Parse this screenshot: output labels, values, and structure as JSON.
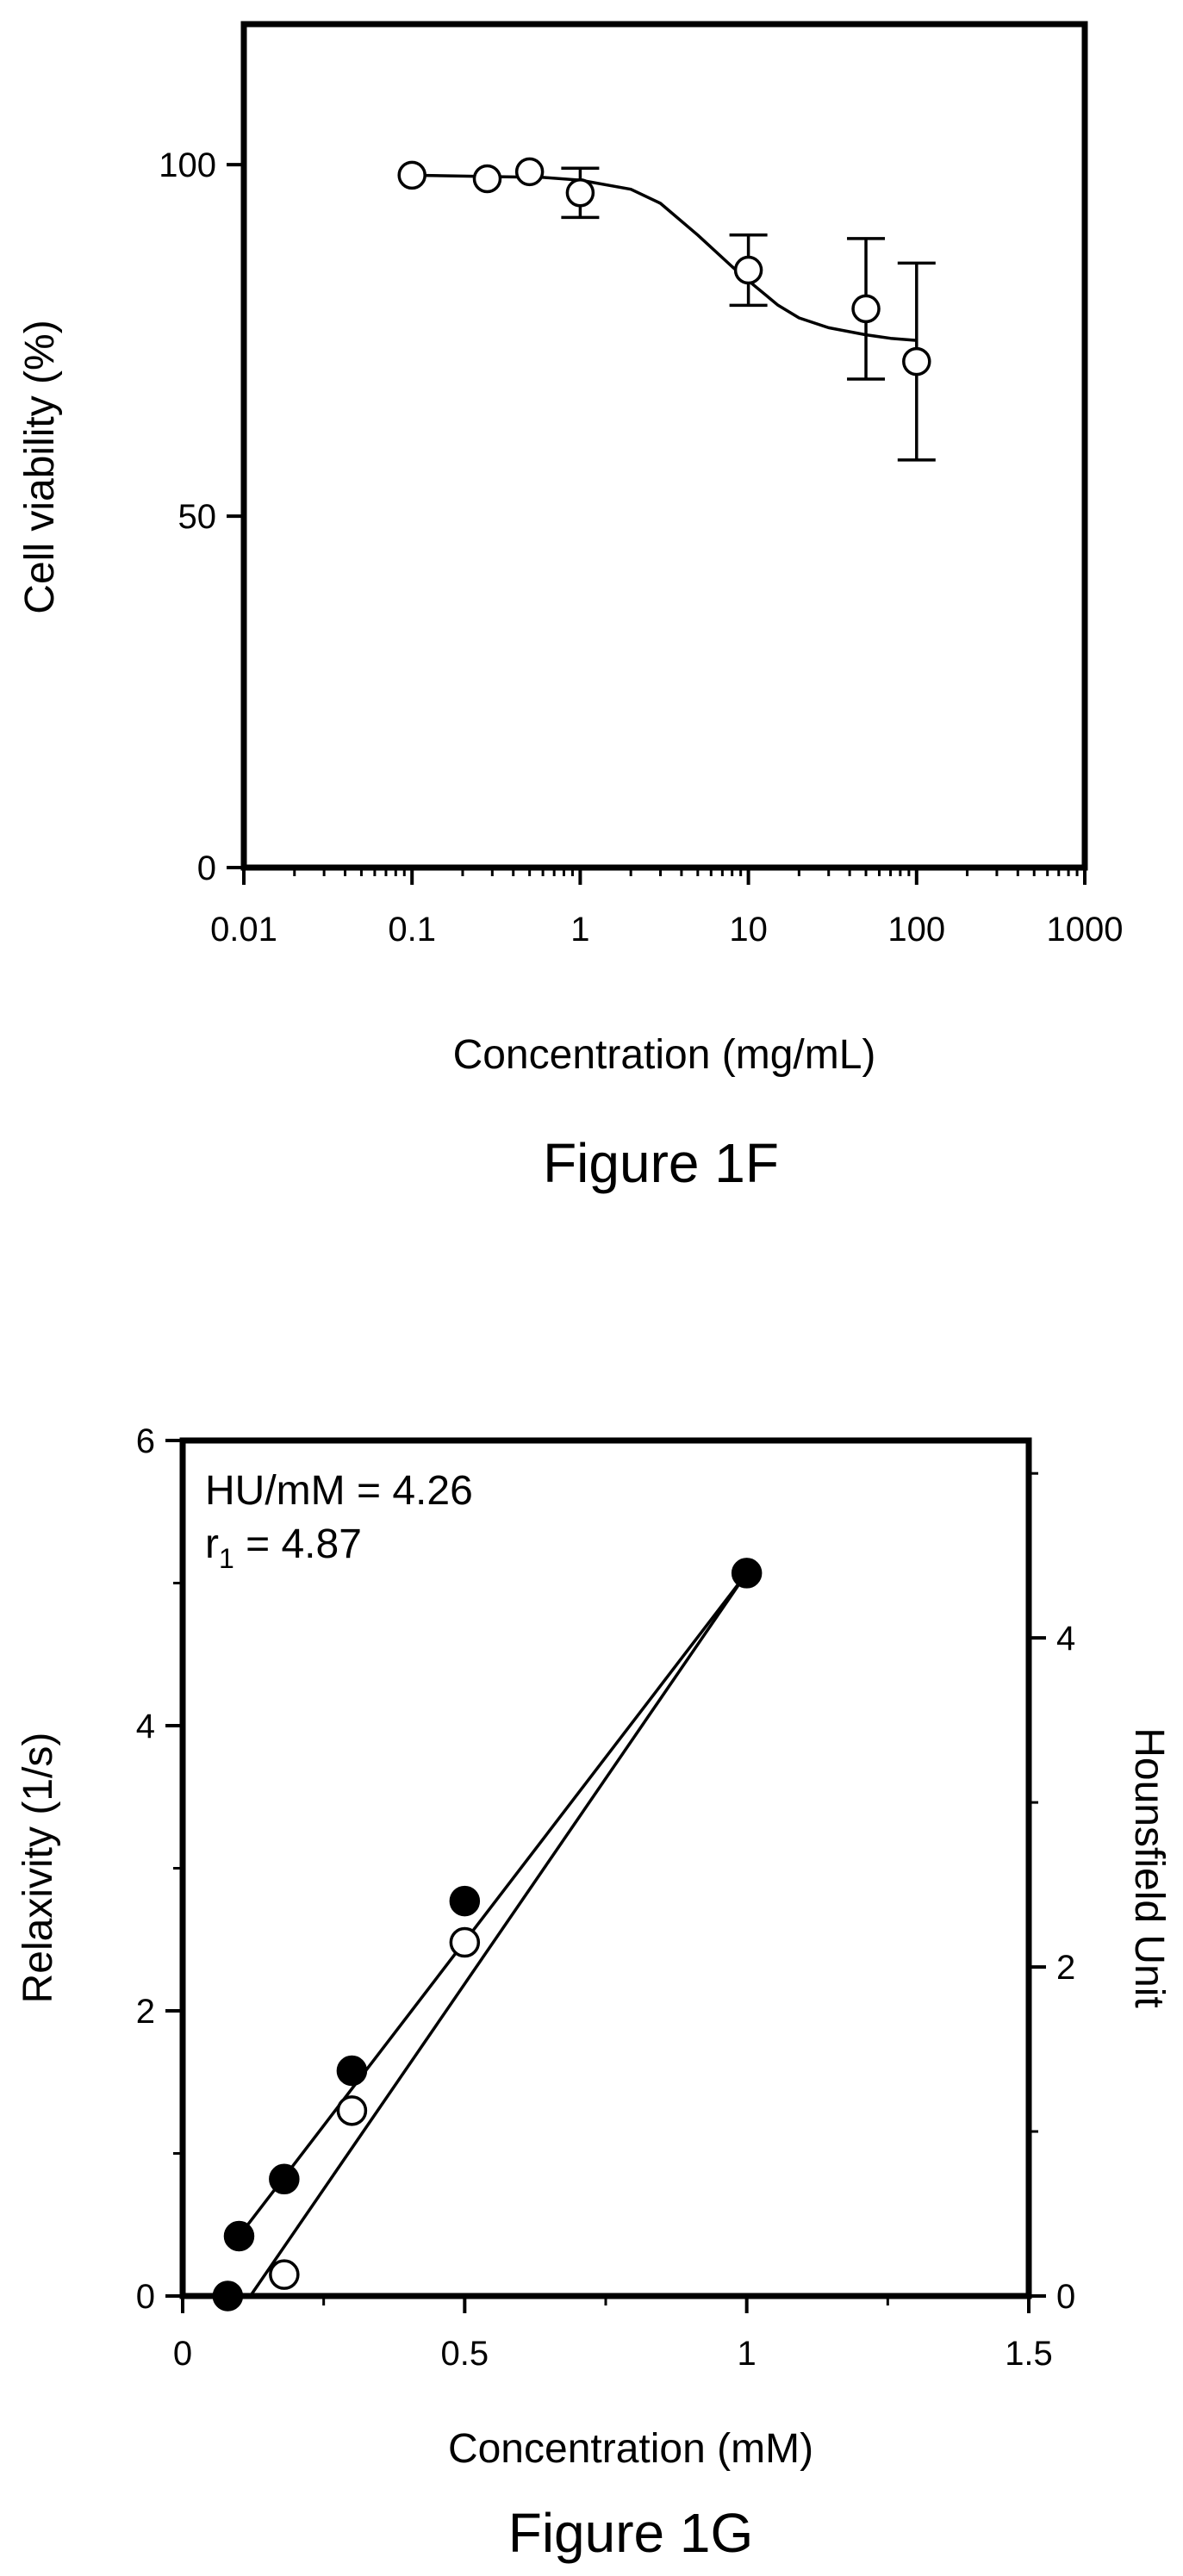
{
  "chart_data": [
    {
      "type": "scatter",
      "caption": "Figure 1F",
      "xlabel": "Concentration (mg/mL)",
      "ylabel": "Cell viability (%)",
      "x_scale": "log",
      "xlim": [
        0.01,
        1000
      ],
      "ylim": [
        0,
        120
      ],
      "x_ticks": [
        0.01,
        0.1,
        1,
        10,
        100,
        1000
      ],
      "x_tick_labels": [
        "0.01",
        "0.1",
        "1",
        "10",
        "100",
        "1000"
      ],
      "y_ticks": [
        0,
        50,
        100
      ],
      "y_tick_labels": [
        "0",
        "50",
        "100"
      ],
      "grid": false,
      "legend": "none",
      "series": [
        {
          "marker": "open-circle",
          "x": [
            0.1,
            0.28,
            0.5,
            1,
            10,
            50,
            100
          ],
          "y": [
            98.5,
            98,
            99,
            96,
            85,
            79.5,
            72
          ],
          "error": [
            0,
            0,
            0,
            3.5,
            5,
            10,
            14
          ]
        }
      ],
      "fit_curve": {
        "type": "sigmoidal",
        "x": [
          0.1,
          0.3,
          0.6,
          1,
          2,
          3,
          5,
          8,
          10,
          15,
          20,
          30,
          50,
          70,
          100
        ],
        "y": [
          98.5,
          98.3,
          98.2,
          97.8,
          96.5,
          94.5,
          90,
          85.5,
          83.5,
          80,
          78.2,
          76.8,
          75.8,
          75.3,
          75
        ]
      }
    },
    {
      "type": "scatter",
      "caption": "Figure  1G",
      "xlabel": "Concentration (mM)",
      "ylabel": "Relaxivity (1/s)",
      "y2label": "Hounsfield Unit",
      "xlim": [
        0,
        1.5
      ],
      "ylim": [
        0,
        6
      ],
      "y2lim": [
        0,
        5.2
      ],
      "x_ticks": [
        0,
        0.5,
        1,
        1.5
      ],
      "x_tick_labels": [
        "0",
        "0.5",
        "1",
        "1.5"
      ],
      "y_ticks": [
        0,
        2,
        4,
        6
      ],
      "y_tick_labels": [
        "0",
        "2",
        "4",
        "6"
      ],
      "y2_ticks": [
        0,
        2,
        4
      ],
      "y2_tick_labels": [
        "0",
        "2",
        "4"
      ],
      "grid": false,
      "legend": "none",
      "annotation_line1": "HU/mM = 4.26",
      "annotation_r": "r",
      "annotation_sub": "1",
      "annotation_line2_rest": " = 4.87",
      "series": [
        {
          "marker": "filled-circle",
          "axis": "left",
          "x": [
            0.08,
            0.1,
            0.18,
            0.3,
            0.5,
            1
          ],
          "y": [
            0,
            0.42,
            0.82,
            1.58,
            2.77,
            5.07
          ]
        },
        {
          "marker": "open-circle",
          "axis": "left",
          "x": [
            0.18,
            0.3,
            0.5
          ],
          "y": [
            0.15,
            1.3,
            2.48
          ]
        }
      ],
      "fit_lines": [
        {
          "x": [
            0.1,
            1
          ],
          "y": [
            0.42,
            5.07
          ]
        },
        {
          "x": [
            0.12,
            1
          ],
          "y": [
            0,
            5.07
          ]
        }
      ]
    }
  ]
}
